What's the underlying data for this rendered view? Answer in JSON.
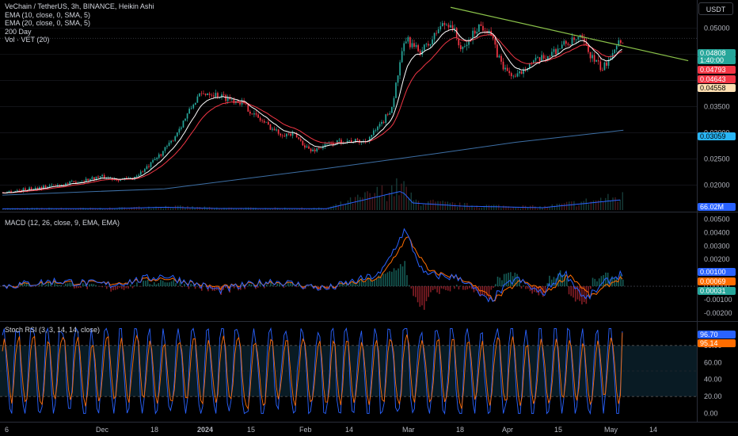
{
  "legend_main": [
    "VeChain / TetherUS, 3h, BINANCE, Heikin Ashi",
    "EMA (10, close, 0, SMA, 5)",
    "EMA (20, close, 0, SMA, 5)",
    "200 Day",
    "Vol · VET (20)"
  ],
  "legend_macd": "MACD (12, 26, close, 9, EMA, EMA)",
  "legend_stoch": "Stoch RSI (3, 3, 14, 14, close)",
  "currency_button": "USDT",
  "price_tags": [
    {
      "text": "0.04808",
      "bg": "#26a69a",
      "fg": "#ffffff"
    },
    {
      "text": "1:40:00",
      "bg": "#26a69a",
      "fg": "#ffffff"
    },
    {
      "text": "0.04793",
      "bg": "#f23645",
      "fg": "#ffffff"
    },
    {
      "text": "0.04643",
      "bg": "#f23645",
      "fg": "#ffffff"
    },
    {
      "text": "0.04558",
      "bg": "#ffe0b2",
      "fg": "#000000"
    },
    {
      "text": "0.03059",
      "bg": "#29b6f6",
      "fg": "#000000"
    },
    {
      "text": "66.02M",
      "bg": "#2962ff",
      "fg": "#ffffff"
    },
    {
      "text": "0.00100",
      "bg": "#2962ff",
      "fg": "#ffffff"
    },
    {
      "text": "0.00069",
      "bg": "#ff6d00",
      "fg": "#ffffff"
    },
    {
      "text": "0.00031",
      "bg": "#26a69a",
      "fg": "#ffffff"
    },
    {
      "text": "96.70",
      "bg": "#2962ff",
      "fg": "#ffffff"
    },
    {
      "text": "95.14",
      "bg": "#ff6d00",
      "fg": "#ffffff"
    }
  ],
  "colors": {
    "up": "#26a69a",
    "down": "#f23645",
    "ema10": "#ffffff",
    "ema20": "#f23645",
    "ma200": "#3d6fa5",
    "trend": "#8bc34a",
    "macd": "#2962ff",
    "signal": "#ff6d00",
    "k": "#2962ff",
    "d": "#ff6d00",
    "grid": "#1c1f26",
    "axis_text": "#b2b5be"
  },
  "chart_data": [
    {
      "type": "candlestick",
      "title": "VeChain / TetherUS, 3h, BINANCE, Heikin Ashi",
      "x_tick_labels": [
        "6",
        "Dec",
        "18",
        "2024",
        "15",
        "Feb",
        "14",
        "Mar",
        "18",
        "Apr",
        "15",
        "May",
        "14"
      ],
      "y_ticks": [
        "0.05000",
        "0.04500",
        "0.04000",
        "0.03500",
        "0.03000",
        "0.02500",
        "0.02000"
      ],
      "ylim": [
        0.0166,
        0.0554
      ],
      "price_path": [
        [
          0,
          0.0186
        ],
        [
          5,
          0.0193
        ],
        [
          12,
          0.0203
        ],
        [
          18,
          0.0216
        ],
        [
          22,
          0.0211
        ],
        [
          24,
          0.0213
        ],
        [
          27,
          0.0236
        ],
        [
          31,
          0.028
        ],
        [
          36,
          0.0368
        ],
        [
          38,
          0.0378
        ],
        [
          41,
          0.0368
        ],
        [
          44,
          0.036
        ],
        [
          47,
          0.033
        ],
        [
          51,
          0.03
        ],
        [
          54,
          0.0295
        ],
        [
          57,
          0.0265
        ],
        [
          60,
          0.0277
        ],
        [
          63,
          0.0285
        ],
        [
          67,
          0.0283
        ],
        [
          70,
          0.0315
        ],
        [
          72,
          0.035
        ],
        [
          73,
          0.0405
        ],
        [
          74.5,
          0.048
        ],
        [
          77,
          0.0455
        ],
        [
          79,
          0.047
        ],
        [
          81,
          0.0505
        ],
        [
          83,
          0.051
        ],
        [
          85,
          0.0455
        ],
        [
          88,
          0.0505
        ],
        [
          90,
          0.0498
        ],
        [
          91.5,
          0.045
        ],
        [
          93,
          0.042
        ],
        [
          95,
          0.0405
        ],
        [
          97,
          0.043
        ],
        [
          100,
          0.0442
        ],
        [
          104,
          0.047
        ],
        [
          107,
          0.048
        ],
        [
          109,
          0.0445
        ],
        [
          111,
          0.042
        ],
        [
          113.5,
          0.047
        ],
        [
          115,
          0.048
        ]
      ],
      "ma200": [
        [
          0,
          0.0181
        ],
        [
          30,
          0.0193
        ],
        [
          60,
          0.0232
        ],
        [
          80,
          0.026
        ],
        [
          95,
          0.0282
        ],
        [
          115,
          0.0305
        ]
      ],
      "trendline": [
        [
          83,
          0.054
        ],
        [
          127,
          0.0438
        ]
      ],
      "volume_millions": [
        [
          0,
          8
        ],
        [
          20,
          9
        ],
        [
          30,
          18
        ],
        [
          40,
          10
        ],
        [
          60,
          9
        ],
        [
          74,
          120
        ],
        [
          76,
          45
        ],
        [
          85,
          25
        ],
        [
          100,
          15
        ],
        [
          115,
          66.02
        ]
      ]
    },
    {
      "type": "line",
      "title": "MACD (12, 26, close, 9, EMA, EMA)",
      "y_ticks": [
        "0.00500",
        "0.00400",
        "0.00300",
        "0.00200",
        "0.00100",
        "0.00000",
        "-0.00100",
        "-0.00200"
      ],
      "ylim": [
        -0.0023,
        0.0052
      ],
      "series": [
        {
          "name": "MACD",
          "values": [
            [
              0,
              0.0
            ],
            [
              10,
              0.0004
            ],
            [
              20,
              0.0001
            ],
            [
              30,
              0.0008
            ],
            [
              40,
              -0.0003
            ],
            [
              50,
              0.0004
            ],
            [
              60,
              -0.0002
            ],
            [
              70,
              0.0009
            ],
            [
              74.5,
              0.0042
            ],
            [
              78,
              0.0009
            ],
            [
              85,
              0.0006
            ],
            [
              90,
              -0.0012
            ],
            [
              95,
              0.0006
            ],
            [
              100,
              -0.0006
            ],
            [
              104,
              0.0011
            ],
            [
              108,
              -0.001
            ],
            [
              112,
              0.0004
            ],
            [
              115,
              0.001
            ]
          ]
        },
        {
          "name": "Signal",
          "values": [
            [
              0,
              0.0
            ],
            [
              10,
              0.0003
            ],
            [
              20,
              0.0002
            ],
            [
              30,
              0.0006
            ],
            [
              40,
              -0.0001
            ],
            [
              50,
              0.0003
            ],
            [
              60,
              -0.0001
            ],
            [
              70,
              0.0006
            ],
            [
              75,
              0.0037
            ],
            [
              79,
              0.0011
            ],
            [
              85,
              0.0006
            ],
            [
              91,
              -0.001
            ],
            [
              96,
              0.0004
            ],
            [
              101,
              -0.0004
            ],
            [
              105,
              0.0009
            ],
            [
              109,
              -0.0008
            ],
            [
              113,
              0.0003
            ],
            [
              115,
              0.00069
            ]
          ]
        }
      ],
      "last_histogram": 0.00031
    },
    {
      "type": "line",
      "title": "Stoch RSI (3, 3, 14, 14, close)",
      "y_ticks": [
        "80.00",
        "60.00",
        "40.00",
        "20.00",
        "0.00"
      ],
      "ylim": [
        -5,
        105
      ],
      "band": [
        20,
        80
      ],
      "series": [
        {
          "name": "K",
          "last": 96.7
        },
        {
          "name": "D",
          "last": 95.14
        }
      ]
    }
  ]
}
